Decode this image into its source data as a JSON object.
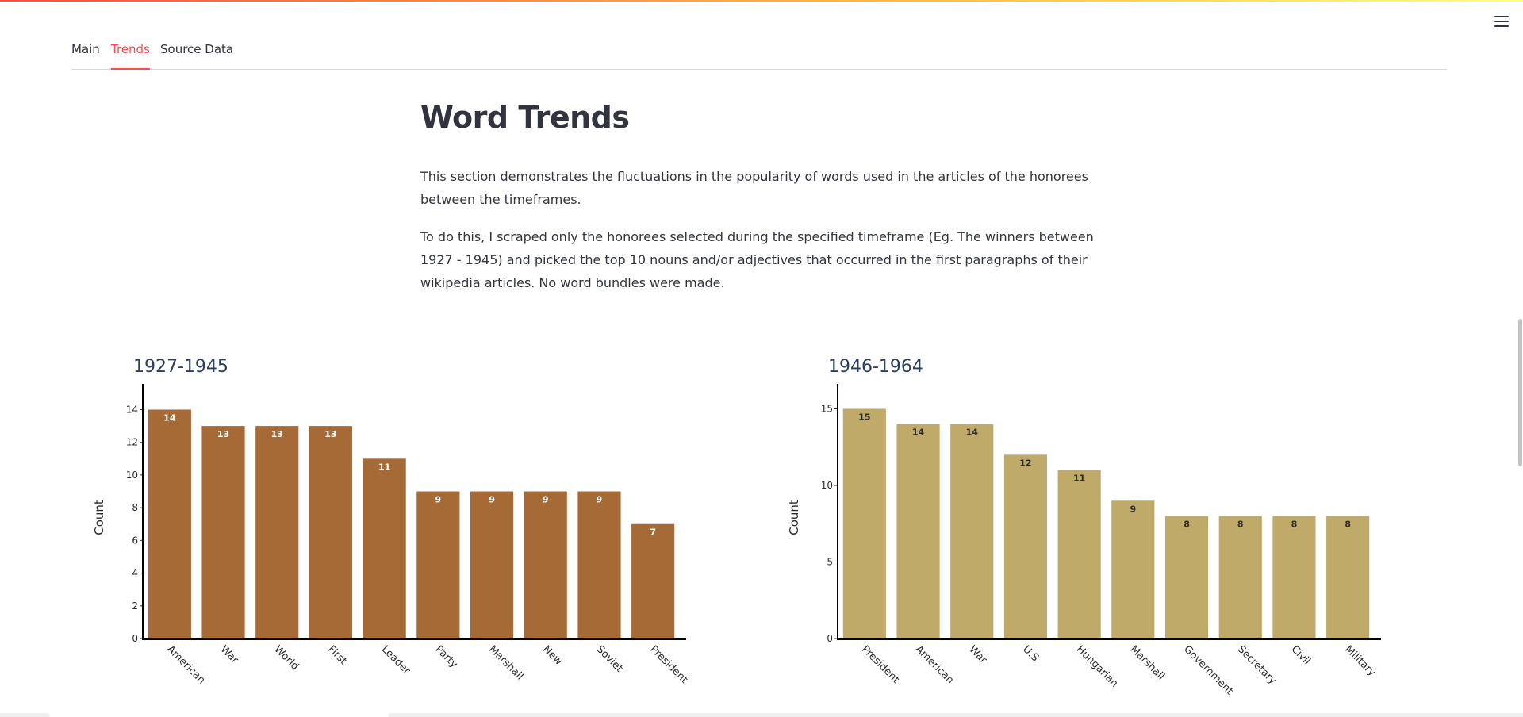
{
  "tabs": [
    {
      "label": "Main"
    },
    {
      "label": "Trends"
    },
    {
      "label": "Source Data"
    }
  ],
  "menu": {
    "icon": "hamburger-menu-icon"
  },
  "page": {
    "title": "Word Trends",
    "paragraph1": "This section demonstrates the fluctuations in the popularity of words used in the articles of the honorees between the timeframes.",
    "paragraph2": "To do this, I scraped only the honorees selected during the specified timeframe (Eg. The winners between 1927 - 1945) and picked the top 10 nouns and/or adjectives that occurred in the first paragraphs of their wikipedia articles. No word bundles were made."
  },
  "colors": {
    "accent": "#ff4b4b",
    "bar1": "#a66a37",
    "bar2": "#c0aa69"
  },
  "chart_data": [
    {
      "type": "bar",
      "title": "1927-1945",
      "ylabel": "Count",
      "xlabel": "",
      "categories": [
        "American",
        "War",
        "World",
        "First",
        "Leader",
        "Party",
        "Marshall",
        "New",
        "Soviet",
        "President"
      ],
      "values": [
        14,
        13,
        13,
        13,
        11,
        9,
        9,
        9,
        9,
        7
      ],
      "ylim": [
        0,
        14.8
      ],
      "yticks": [
        0,
        2,
        4,
        6,
        8,
        10,
        12,
        14
      ],
      "bar_color": "#a66a37",
      "label_color": "#ffffff",
      "grid": false
    },
    {
      "type": "bar",
      "title": "1946-1964",
      "ylabel": "Count",
      "xlabel": "",
      "categories": [
        "President",
        "American",
        "War",
        "U.S",
        "Hungarian",
        "Marshall",
        "Government",
        "Secretary",
        "Civil",
        "Military"
      ],
      "values": [
        15,
        14,
        14,
        12,
        11,
        9,
        8,
        8,
        8,
        8
      ],
      "ylim": [
        0,
        15.8
      ],
      "yticks": [
        0,
        5,
        10,
        15
      ],
      "bar_color": "#c0aa69",
      "label_color": "#2a2a2a",
      "grid": false
    }
  ]
}
